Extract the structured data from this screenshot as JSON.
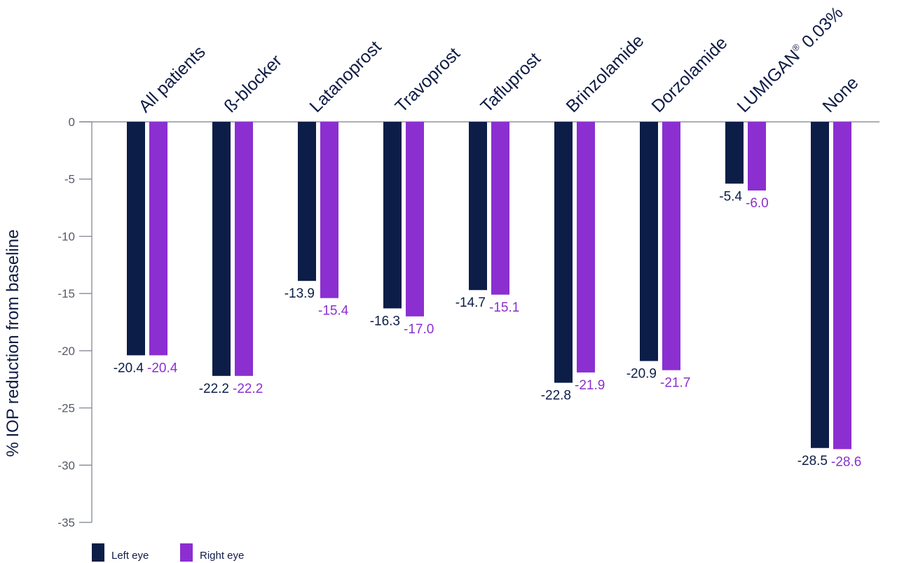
{
  "chart_data": {
    "type": "bar",
    "categories": [
      "All patients",
      "ß-blocker",
      "Latanoprost",
      "Travoprost",
      "Tafluprost",
      "Brinzolamide",
      "Dorzolamide",
      "LUMIGAN® 0.03%",
      "None"
    ],
    "series": [
      {
        "name": "Left eye",
        "color": "#0c1d48",
        "values": [
          -20.4,
          -22.2,
          -13.9,
          -16.3,
          -14.7,
          -22.8,
          -20.9,
          -5.4,
          -28.5
        ],
        "labels": [
          "-20.4",
          "-22.2",
          "-13.9",
          "-16.3",
          "-14.7",
          "-22.8",
          "-20.9",
          "-5.4",
          "-28.5"
        ]
      },
      {
        "name": "Right eye",
        "color": "#8b2fd1",
        "values": [
          -20.4,
          -22.2,
          -15.4,
          -17.0,
          -15.1,
          -21.9,
          -21.7,
          -6.0,
          -28.6
        ],
        "labels": [
          "-20.4",
          "-22.2",
          "-15.4",
          "-17.0",
          "-15.1",
          "-21.9",
          "-21.7",
          "-6.0",
          "-28.6"
        ]
      }
    ],
    "ylabel": "% IOP reduction from baseline",
    "xlabel": "",
    "ylim": [
      -35,
      0
    ],
    "yticks": [
      "0",
      "-5",
      "-10",
      "-15",
      "-20",
      "-25",
      "-30",
      "-35"
    ],
    "ytick_values": [
      0,
      -5,
      -10,
      -15,
      -20,
      -25,
      -30,
      -35
    ],
    "legend_position": "bottom-left",
    "grid": false,
    "category_label_orientation": "rotated-upward",
    "axis_color": "#7a7f8a"
  }
}
